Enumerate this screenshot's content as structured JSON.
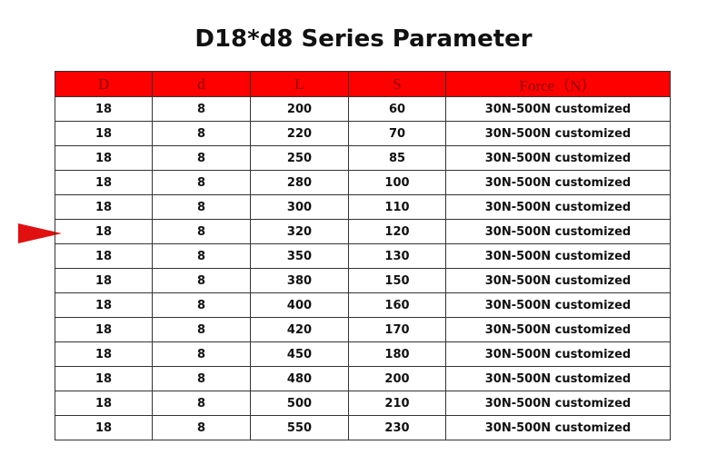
{
  "header": {
    "title": "D18*d8 Series Parameter"
  },
  "table": {
    "columns": [
      "D",
      "d",
      "L",
      "S",
      "Force（N）"
    ],
    "rows": [
      [
        18,
        8,
        200,
        60,
        "30N-500N customized"
      ],
      [
        18,
        8,
        220,
        70,
        "30N-500N customized"
      ],
      [
        18,
        8,
        250,
        85,
        "30N-500N customized"
      ],
      [
        18,
        8,
        280,
        100,
        "30N-500N customized"
      ],
      [
        18,
        8,
        300,
        110,
        "30N-500N customized"
      ],
      [
        18,
        8,
        320,
        120,
        "30N-500N customized"
      ],
      [
        18,
        8,
        350,
        130,
        "30N-500N customized"
      ],
      [
        18,
        8,
        380,
        150,
        "30N-500N customized"
      ],
      [
        18,
        8,
        400,
        160,
        "30N-500N customized"
      ],
      [
        18,
        8,
        420,
        170,
        "30N-500N customized"
      ],
      [
        18,
        8,
        450,
        180,
        "30N-500N customized"
      ],
      [
        18,
        8,
        480,
        200,
        "30N-500N customized"
      ],
      [
        18,
        8,
        500,
        210,
        "30N-500N customized"
      ],
      [
        18,
        8,
        550,
        230,
        "30N-500N customized"
      ]
    ]
  }
}
